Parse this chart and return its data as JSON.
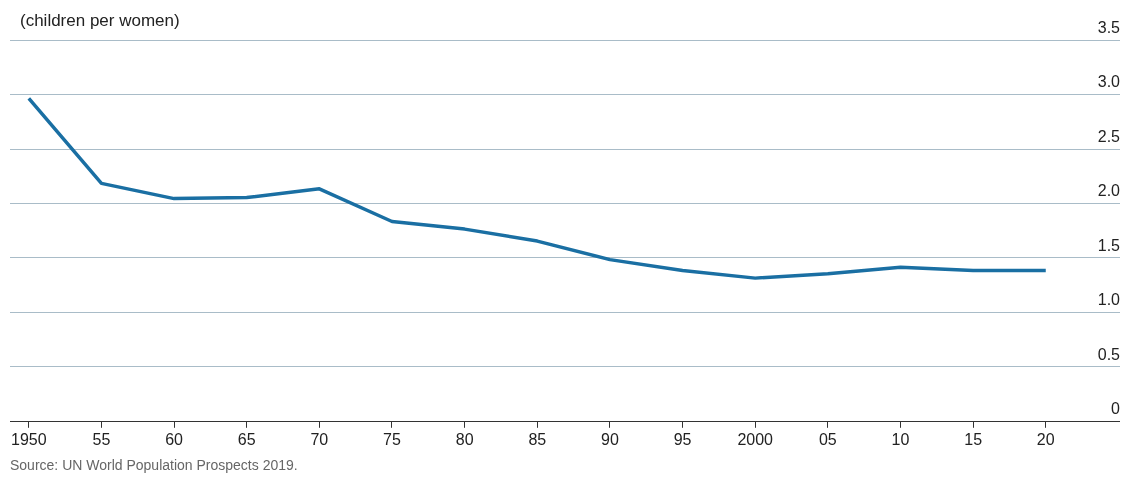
{
  "chart_data": {
    "type": "line",
    "title": "(children per women)",
    "annotations": [
      "Source: UN World Population Prospects 2019."
    ],
    "categories": [
      "1950",
      "55",
      "60",
      "65",
      "70",
      "75",
      "80",
      "85",
      "90",
      "95",
      "2000",
      "05",
      "10",
      "15",
      "20"
    ],
    "series": [
      {
        "color": "#1a6fa3",
        "values": [
          2.96,
          2.18,
          2.04,
          2.05,
          2.13,
          1.83,
          1.76,
          1.65,
          1.48,
          1.38,
          1.31,
          1.35,
          1.41,
          1.38,
          1.38
        ]
      }
    ],
    "ylim": [
      0,
      3.5
    ],
    "yticks": [
      0,
      {
        "value": 0.5,
        "label": "0.5"
      },
      {
        "value": 1,
        "label": "1.0"
      },
      {
        "value": 1.5,
        "label": "1.5"
      },
      {
        "value": 2,
        "label": "2.0"
      },
      {
        "value": 2.5,
        "label": "2.5"
      },
      {
        "value": 3,
        "label": "3.0"
      },
      {
        "value": 3.5,
        "label": "3.5"
      }
    ],
    "grid": "y",
    "legend": false,
    "marker": "none",
    "line_style": "solid"
  }
}
